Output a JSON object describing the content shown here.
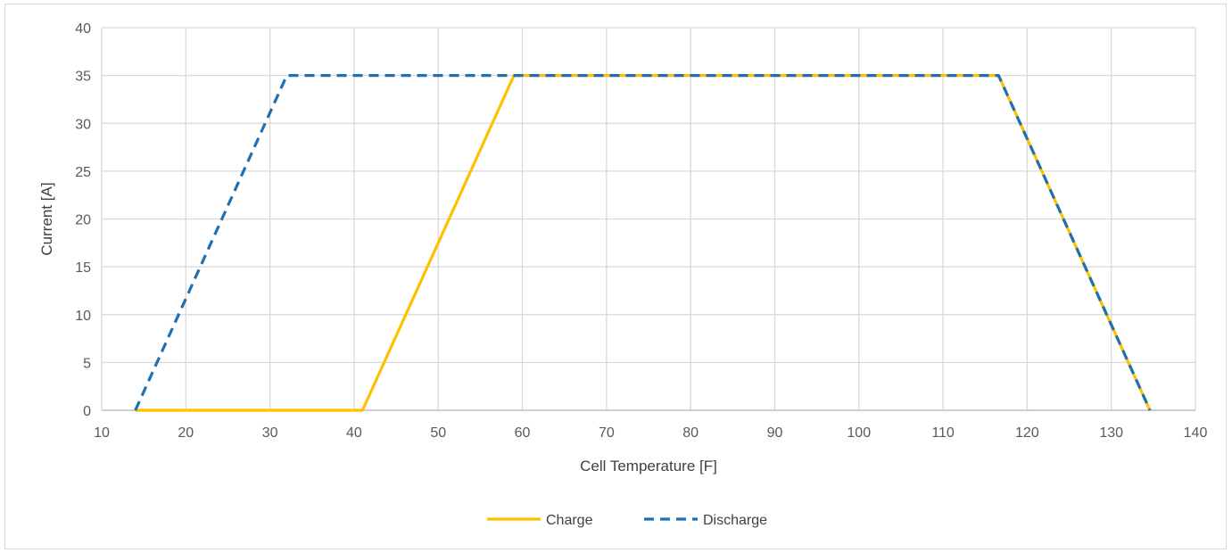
{
  "chart_data": {
    "type": "line",
    "xlabel": "Cell Temperature [F]",
    "ylabel": "Current [A]",
    "xlim": [
      10,
      140
    ],
    "ylim": [
      0,
      40
    ],
    "x_ticks": [
      10,
      20,
      30,
      40,
      50,
      60,
      70,
      80,
      90,
      100,
      110,
      120,
      130,
      140
    ],
    "y_ticks": [
      0,
      5,
      10,
      15,
      20,
      25,
      30,
      35,
      40
    ],
    "grid": true,
    "legend_position": "bottom",
    "series": [
      {
        "name": "Charge",
        "color": "#ffc000",
        "dash": "solid",
        "points": [
          [
            14,
            0
          ],
          [
            41,
            0
          ],
          [
            59,
            35
          ],
          [
            116.6,
            35
          ],
          [
            134.6,
            0
          ]
        ]
      },
      {
        "name": "Discharge",
        "color": "#1f6fb2",
        "dash": "dashed",
        "points": [
          [
            14,
            0
          ],
          [
            32,
            35
          ],
          [
            116.6,
            35
          ],
          [
            134.6,
            0
          ]
        ]
      }
    ]
  }
}
